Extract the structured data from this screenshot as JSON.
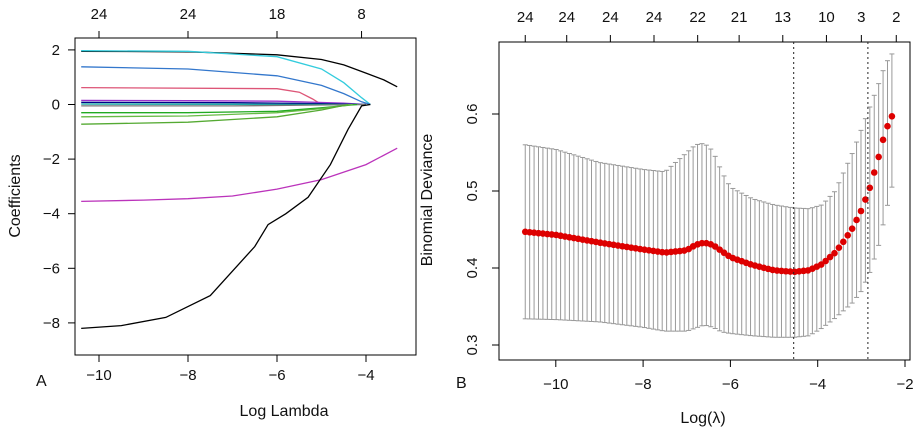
{
  "figure": {
    "panel_a_letter": "A",
    "panel_b_letter": "B"
  },
  "chart_data": [
    {
      "type": "line",
      "panel": "A",
      "title": "",
      "xlabel": "Log Lambda",
      "ylabel": "Coefficients",
      "xlim": [
        -10.5,
        -3.3
      ],
      "ylim": [
        -8.4,
        2.3
      ],
      "x_ticks": [
        -10,
        -8,
        -6,
        -4
      ],
      "x_tick_labels": [
        "−10",
        "−8",
        "−6",
        "−4"
      ],
      "y_ticks": [
        2,
        0,
        -2,
        -4,
        -6,
        -8
      ],
      "y_tick_labels": [
        "2",
        "0",
        "−2",
        "−4",
        "−6",
        "−8"
      ],
      "top_axis": {
        "positions": [
          -10.0,
          -8.0,
          -6.0,
          -4.1
        ],
        "labels": [
          "24",
          "24",
          "18",
          "8"
        ]
      },
      "series": [
        {
          "name": "coef-black-top",
          "color": "#000000",
          "points": [
            [
              -10.4,
              1.95
            ],
            [
              -8,
              1.93
            ],
            [
              -6,
              1.82
            ],
            [
              -5,
              1.65
            ],
            [
              -4.5,
              1.45
            ],
            [
              -4,
              1.15
            ],
            [
              -3.6,
              0.9
            ],
            [
              -3.3,
              0.65
            ]
          ]
        },
        {
          "name": "coef-cyan",
          "color": "#33ccdd",
          "points": [
            [
              -10.4,
              1.97
            ],
            [
              -8,
              1.95
            ],
            [
              -6,
              1.75
            ],
            [
              -5,
              1.3
            ],
            [
              -4.5,
              0.8
            ],
            [
              -4.1,
              0.25
            ],
            [
              -3.9,
              0.0
            ]
          ]
        },
        {
          "name": "coef-blue",
          "color": "#3377cc",
          "points": [
            [
              -10.4,
              1.38
            ],
            [
              -8,
              1.3
            ],
            [
              -6,
              1.05
            ],
            [
              -5,
              0.7
            ],
            [
              -4.5,
              0.4
            ],
            [
              -4.1,
              0.1
            ],
            [
              -3.9,
              0.0
            ]
          ]
        },
        {
          "name": "coef-pink",
          "color": "#dd5577",
          "points": [
            [
              -10.4,
              0.62
            ],
            [
              -6,
              0.58
            ],
            [
              -5.5,
              0.45
            ],
            [
              -5.2,
              0.2
            ],
            [
              -5.0,
              0.0
            ]
          ]
        },
        {
          "name": "coef-purple-small",
          "color": "#9933cc",
          "points": [
            [
              -10.4,
              0.15
            ],
            [
              -8,
              0.14
            ],
            [
              -6,
              0.12
            ],
            [
              -4.5,
              0.05
            ],
            [
              -4.0,
              0.0
            ]
          ]
        },
        {
          "name": "coef-navy",
          "color": "#000088",
          "points": [
            [
              -10.4,
              0.08
            ],
            [
              -7,
              0.07
            ],
            [
              -5,
              0.03
            ],
            [
              -4.0,
              0.0
            ]
          ]
        },
        {
          "name": "coef-teal",
          "color": "#009999",
          "points": [
            [
              -10.4,
              0.02
            ],
            [
              -7,
              0.01
            ],
            [
              -4.0,
              0.0
            ]
          ]
        },
        {
          "name": "coef-gray",
          "color": "#777777",
          "points": [
            [
              -10.4,
              -0.05
            ],
            [
              -7,
              -0.05
            ],
            [
              -5,
              -0.02
            ],
            [
              -4.0,
              0.0
            ]
          ]
        },
        {
          "name": "coef-green-1",
          "color": "#22aa22",
          "points": [
            [
              -10.4,
              -0.3
            ],
            [
              -8,
              -0.3
            ],
            [
              -6,
              -0.25
            ],
            [
              -5,
              -0.12
            ],
            [
              -4.2,
              0.0
            ]
          ]
        },
        {
          "name": "coef-green-2",
          "color": "#66bb44",
          "points": [
            [
              -10.4,
              -0.45
            ],
            [
              -8,
              -0.42
            ],
            [
              -6,
              -0.3
            ],
            [
              -5,
              -0.15
            ],
            [
              -4.3,
              0.0
            ]
          ]
        },
        {
          "name": "coef-green-3",
          "color": "#55aa33",
          "points": [
            [
              -10.4,
              -0.72
            ],
            [
              -8,
              -0.65
            ],
            [
              -6,
              -0.45
            ],
            [
              -5,
              -0.2
            ],
            [
              -4.4,
              0.0
            ]
          ]
        },
        {
          "name": "coef-magenta",
          "color": "#bb33bb",
          "points": [
            [
              -10.4,
              -3.55
            ],
            [
              -9,
              -3.5
            ],
            [
              -8,
              -3.45
            ],
            [
              -7,
              -3.35
            ],
            [
              -6,
              -3.1
            ],
            [
              -5,
              -2.75
            ],
            [
              -4,
              -2.2
            ],
            [
              -3.3,
              -1.6
            ]
          ]
        },
        {
          "name": "coef-black-bottom",
          "color": "#000000",
          "points": [
            [
              -10.4,
              -8.2
            ],
            [
              -9.5,
              -8.1
            ],
            [
              -8.5,
              -7.8
            ],
            [
              -7.5,
              -7.0
            ],
            [
              -6.5,
              -5.2
            ],
            [
              -6.2,
              -4.4
            ],
            [
              -5.8,
              -4.0
            ],
            [
              -5.3,
              -3.4
            ],
            [
              -4.8,
              -2.2
            ],
            [
              -4.4,
              -0.9
            ],
            [
              -4.1,
              -0.05
            ],
            [
              -3.9,
              0.0
            ]
          ]
        }
      ]
    },
    {
      "type": "scatter",
      "panel": "B",
      "title": "",
      "xlabel": "Log(λ)",
      "ylabel": "Binomial Deviance",
      "xlim": [
        -11.0,
        -1.9
      ],
      "ylim": [
        0.29,
        0.68
      ],
      "x_ticks": [
        -10,
        -8,
        -6,
        -4,
        -2
      ],
      "x_tick_labels": [
        "−10",
        "−8",
        "−6",
        "−4",
        "−2"
      ],
      "y_ticks": [
        0.3,
        0.4,
        0.5,
        0.6
      ],
      "y_tick_labels": [
        "0.3",
        "0.4",
        "0.5",
        "0.6"
      ],
      "top_axis": {
        "positions": [
          -10.7,
          -9.75,
          -8.75,
          -7.75,
          -6.75,
          -5.8,
          -4.8,
          -3.8,
          -3.0,
          -2.2
        ],
        "labels": [
          "24",
          "24",
          "24",
          "24",
          "22",
          "21",
          "13",
          "10",
          "3",
          "2"
        ]
      },
      "vlines": [
        -4.55,
        -2.85
      ],
      "point_color": "#dd0000",
      "errorbar_color": "#999999",
      "curve_x": [
        -10.7,
        -10.0,
        -9.0,
        -8.0,
        -7.5,
        -7.0,
        -6.8,
        -6.6,
        -6.4,
        -6.2,
        -6.0,
        -5.5,
        -5.0,
        -4.55,
        -4.2,
        -3.9,
        -3.6,
        -3.4,
        -3.2,
        -3.0,
        -2.8,
        -2.6,
        -2.45,
        -2.3
      ],
      "curve_mean": [
        0.447,
        0.443,
        0.433,
        0.424,
        0.42,
        0.423,
        0.43,
        0.433,
        0.43,
        0.422,
        0.414,
        0.404,
        0.397,
        0.395,
        0.397,
        0.405,
        0.42,
        0.435,
        0.452,
        0.475,
        0.505,
        0.545,
        0.578,
        0.597
      ],
      "curve_upper": [
        0.56,
        0.554,
        0.537,
        0.528,
        0.525,
        0.55,
        0.56,
        0.562,
        0.552,
        0.525,
        0.505,
        0.49,
        0.482,
        0.478,
        0.477,
        0.482,
        0.5,
        0.525,
        0.55,
        0.58,
        0.61,
        0.64,
        0.665,
        0.678
      ],
      "curve_lower": [
        0.334,
        0.333,
        0.33,
        0.323,
        0.318,
        0.318,
        0.322,
        0.326,
        0.323,
        0.317,
        0.315,
        0.312,
        0.31,
        0.31,
        0.312,
        0.322,
        0.335,
        0.345,
        0.355,
        0.37,
        0.395,
        0.43,
        0.47,
        0.505
      ]
    }
  ]
}
